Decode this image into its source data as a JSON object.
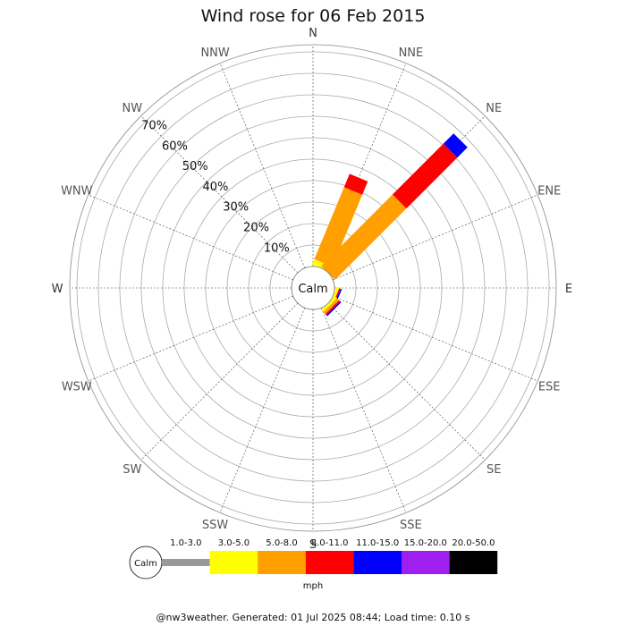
{
  "chart_data": {
    "type": "wind-rose",
    "title": "Wind rose for 06 Feb 2015",
    "unit": "mph",
    "calm_label": "Calm",
    "directions": [
      "N",
      "NNE",
      "NE",
      "ENE",
      "E",
      "ESE",
      "SE",
      "SSE",
      "S",
      "SSW",
      "SW",
      "WSW",
      "W",
      "WNW",
      "NW",
      "NNW"
    ],
    "radial_ticks": [
      "10%",
      "20%",
      "30%",
      "40%",
      "50%",
      "60%",
      "70%"
    ],
    "radial_max_percent": 77,
    "speed_bins": [
      {
        "label": "1.0-3.0",
        "color": "#999999"
      },
      {
        "label": "3.0-5.0",
        "color": "#ffff00"
      },
      {
        "label": "5.0-8.0",
        "color": "#ff9f00"
      },
      {
        "label": "8.0-11.0",
        "color": "#ff0000"
      },
      {
        "label": "11.0-15.0",
        "color": "#0000ff"
      },
      {
        "label": "15.0-20.0",
        "color": "#9f1fef"
      },
      {
        "label": "20.0-50.0",
        "color": "#000000"
      }
    ],
    "series": [
      {
        "direction": "NNE",
        "values": [
          0,
          2,
          27,
          5,
          0,
          0,
          0
        ]
      },
      {
        "direction": "NE",
        "values": [
          0,
          0,
          35,
          25,
          5,
          0,
          0
        ]
      },
      {
        "direction": "ESE",
        "values": [
          0,
          1,
          0,
          0.5,
          0.5,
          0,
          0
        ]
      },
      {
        "direction": "SE",
        "values": [
          0,
          1,
          1,
          0.5,
          0.5,
          0,
          0
        ]
      }
    ]
  },
  "footer": "@nw3weather. Generated: 01 Jul 2025 08:44; Load time: 0.10 s"
}
